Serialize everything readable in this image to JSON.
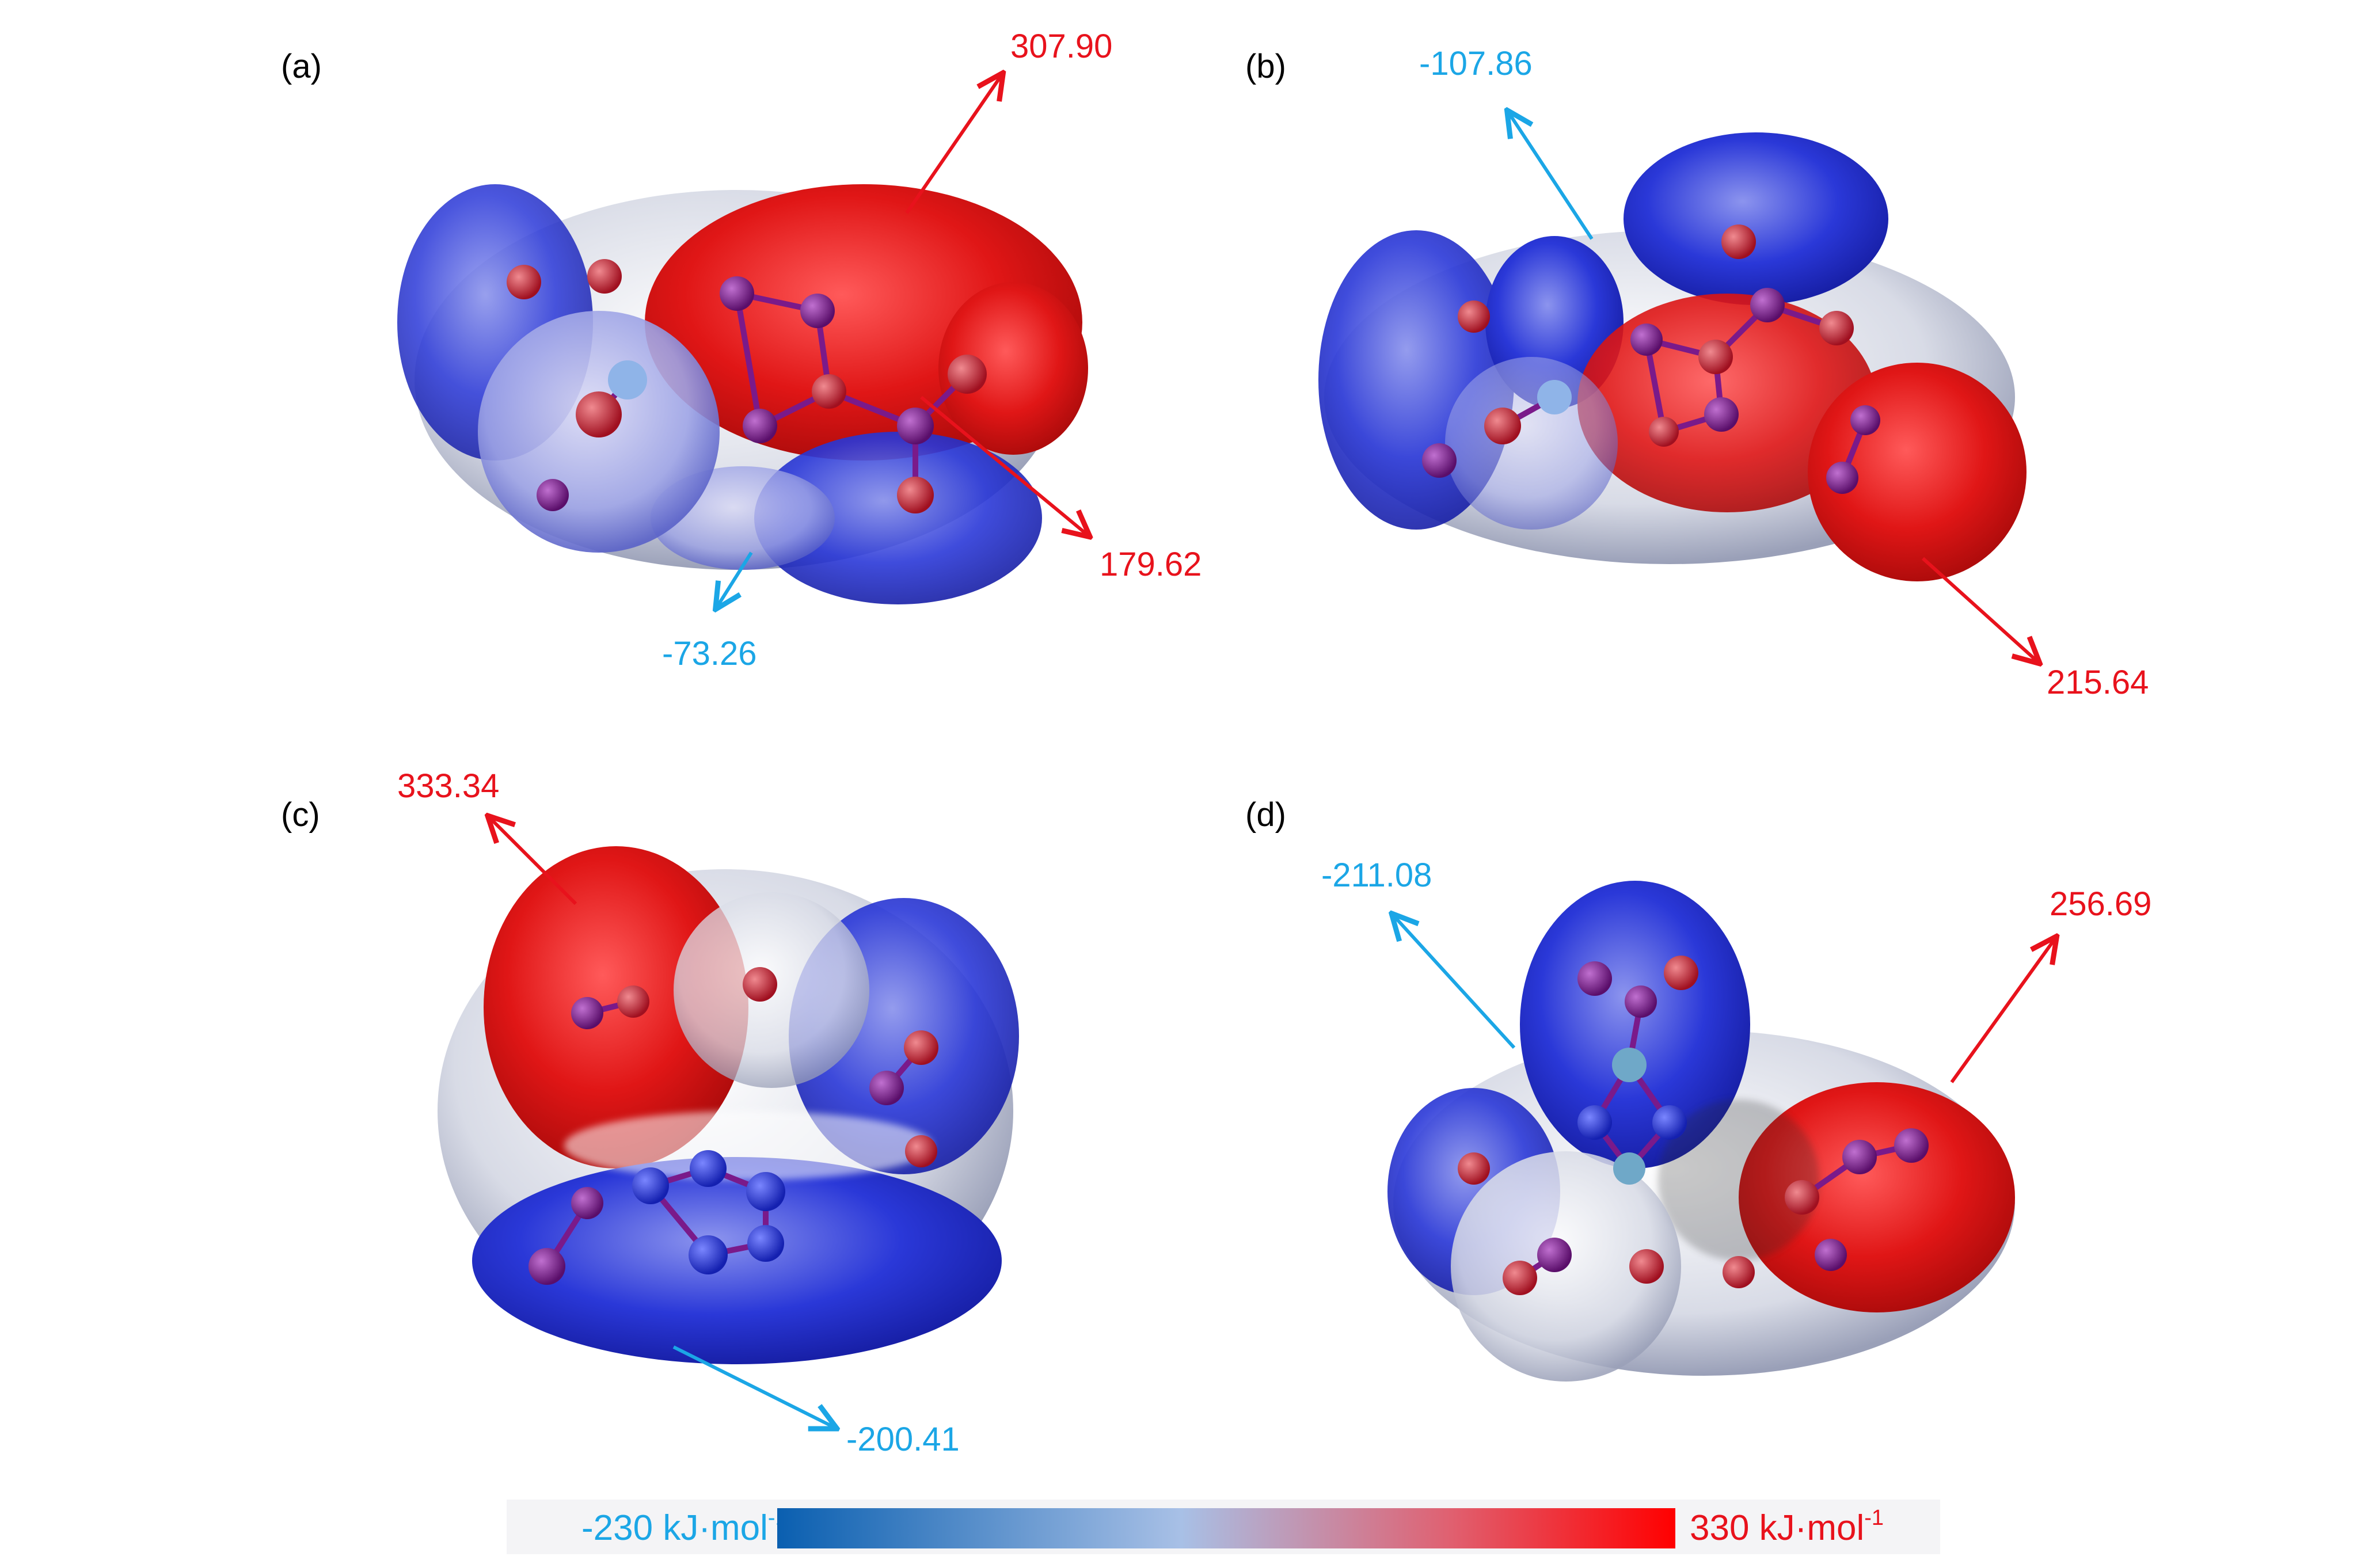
{
  "colors": {
    "positive": "#e8121c",
    "negative": "#1ba6e6",
    "surface_red": "#e01616",
    "surface_blue": "#1f2fd8",
    "surface_white": "#eef0f4",
    "atom_purple": "#7a1a8a",
    "atom_red": "#d21a2a",
    "atom_pink": "#e8b0b8",
    "atom_blue": "#2a3ad8"
  },
  "panels": [
    {
      "label": "(a)",
      "max_value": "307.90",
      "mid_value": "179.62",
      "min_value": "-73.26"
    },
    {
      "label": "(b)",
      "max_value": "215.64",
      "min_value": "-107.86"
    },
    {
      "label": "(c)",
      "max_value": "333.34",
      "min_value": "-200.41"
    },
    {
      "label": "(d)",
      "max_value": "256.69",
      "min_value": "-211.08"
    }
  ],
  "colorbar": {
    "min_label": "-230 kJ·mol",
    "max_label": "330 kJ·mol",
    "unit_exponent": "-1",
    "stops": [
      "#0a5fb0",
      "#a8c0e6",
      "#e06070",
      "#ff0000"
    ]
  }
}
